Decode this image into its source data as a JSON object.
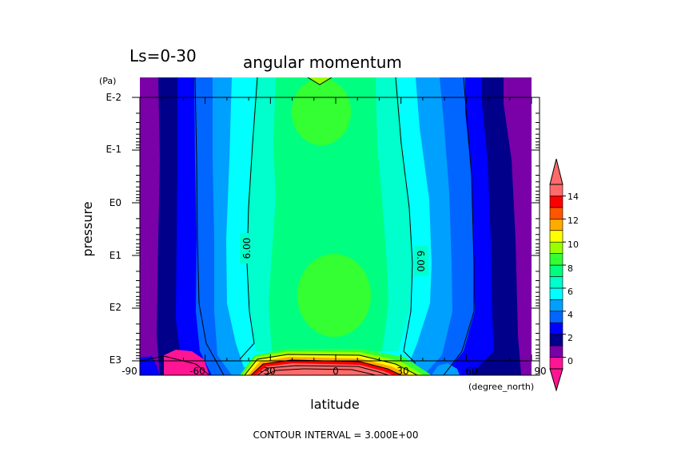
{
  "chart_data": {
    "type": "heatmap",
    "subtitle": "Ls=0-30",
    "title": "angular momentum",
    "xlabel": "latitude",
    "ylabel": "pressure",
    "x_unit": "(degree_north)",
    "y_unit": "(Pa)",
    "xlim": [
      -90,
      90
    ],
    "ylim": [
      1000,
      0.01
    ],
    "y_scale": "log",
    "x_ticks": [
      "-90",
      "-60",
      "-30",
      "0",
      "30",
      "60",
      "90"
    ],
    "y_ticks": [
      "E-2",
      "E-1",
      "E0",
      "E1",
      "E2",
      "E3"
    ],
    "contour_labels": [
      "6.00",
      "6.00"
    ],
    "colorbar": {
      "ticks": [
        "0",
        "2",
        "4",
        "6",
        "8",
        "10",
        "12",
        "14"
      ],
      "colors": [
        "#ff1493",
        "#7a00a8",
        "#00008b",
        "#0000ff",
        "#0066ff",
        "#00a0ff",
        "#00ffff",
        "#00ffcc",
        "#00ff80",
        "#33ff33",
        "#99ff00",
        "#ffff00",
        "#ffaa00",
        "#ff5500",
        "#ff0000",
        "#ff6a6a"
      ]
    },
    "footnote": "CONTOUR INTERVAL = 3.000E+00"
  }
}
